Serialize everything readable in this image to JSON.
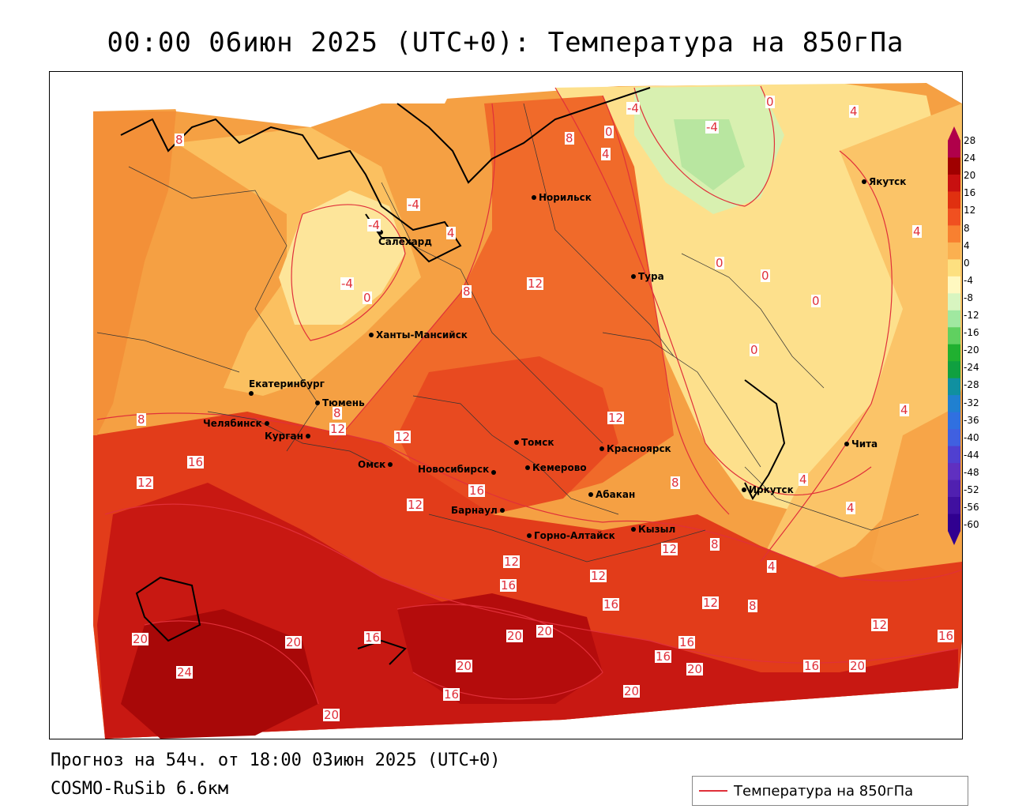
{
  "title": "00:00 06июн 2025 (UTC+0): Температура на 850гПа",
  "footer": {
    "forecast": "Прогноз на 54ч. от 18:00 03июн 2025 (UTC+0)",
    "model": "COSMO-RuSib 6.6км"
  },
  "legend": {
    "label": "Температура на 850гПа",
    "line_color": "#e0303a"
  },
  "colorbar": {
    "ticks": [
      "28",
      "24",
      "20",
      "16",
      "12",
      "8",
      "4",
      "0",
      "-4",
      "-8",
      "-12",
      "-16",
      "-20",
      "-24",
      "-28",
      "-32",
      "-36",
      "-40",
      "-44",
      "-48",
      "-52",
      "-56",
      "-60"
    ],
    "colors": [
      "#b0004a",
      "#a00000",
      "#c81010",
      "#e03010",
      "#f05020",
      "#f88030",
      "#fbb050",
      "#fde080",
      "#fff8c0",
      "#d8f5c0",
      "#a0e8a0",
      "#60d060",
      "#20b030",
      "#10a040",
      "#1090a0",
      "#2080d0",
      "#3070e0",
      "#4060e0",
      "#5040d0",
      "#6030c0",
      "#5020b0",
      "#4010a0",
      "#300090"
    ]
  },
  "cities": [
    {
      "name": "Норильск"
    },
    {
      "name": "Салехард"
    },
    {
      "name": "Тура"
    },
    {
      "name": "Якутск"
    },
    {
      "name": "Ханты-Мансийск"
    },
    {
      "name": "Екатеринбург"
    },
    {
      "name": "Тюмень"
    },
    {
      "name": "Челябинск"
    },
    {
      "name": "Курган"
    },
    {
      "name": "Омск"
    },
    {
      "name": "Томск"
    },
    {
      "name": "Красноярск"
    },
    {
      "name": "Новосибирск"
    },
    {
      "name": "Кемерово"
    },
    {
      "name": "Абакан"
    },
    {
      "name": "Барнаул"
    },
    {
      "name": "Горно-Алтайск"
    },
    {
      "name": "Кызыл"
    },
    {
      "name": "Иркутск"
    },
    {
      "name": "Чита"
    }
  ],
  "contour_labels": [
    "8",
    "-4",
    "4",
    "8",
    "4",
    "0",
    "-4",
    "0",
    "4",
    "-4",
    "-4",
    "4",
    "-4",
    "0",
    "8",
    "12",
    "0",
    "0",
    "0",
    "0",
    "4",
    "8",
    "12",
    "8",
    "12",
    "16",
    "12",
    "12",
    "16",
    "12",
    "4",
    "4",
    "8",
    "12",
    "8",
    "4",
    "8",
    "12",
    "16",
    "12",
    "12",
    "16",
    "20",
    "16",
    "20",
    "20",
    "16",
    "16",
    "20",
    "20",
    "16",
    "20",
    "12",
    "16",
    "20",
    "24",
    "20",
    "16",
    "20"
  ]
}
